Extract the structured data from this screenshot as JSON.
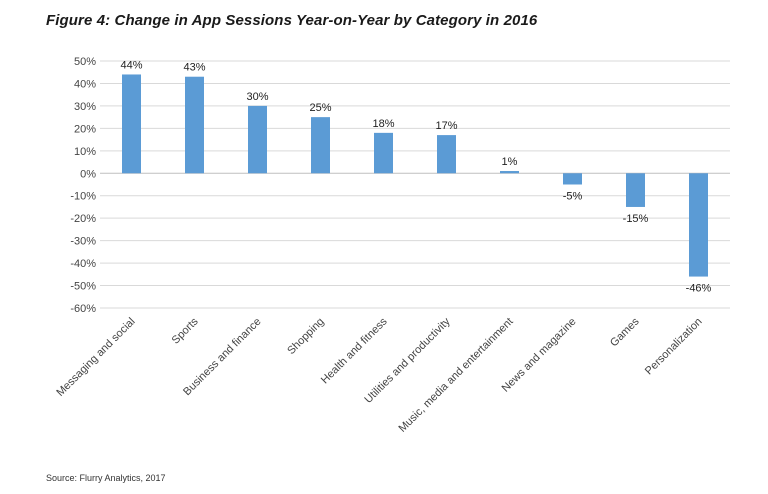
{
  "title": "Figure 4: Change in App Sessions Year-on-Year by Category in 2016",
  "source": "Source: Flurry Analytics, 2017",
  "chart_data": {
    "type": "bar",
    "title": "Figure 4: Change in App Sessions Year-on-Year by Category in 2016",
    "xlabel": "",
    "ylabel": "",
    "ylim": [
      -60,
      50
    ],
    "ytick_step": 10,
    "ytick_suffix": "%",
    "grid": true,
    "legend": "none",
    "bar_color": "#5b9bd5",
    "categories": [
      "Messaging and social",
      "Sports",
      "Business and finance",
      "Shopping",
      "Health and fitness",
      "Utilities and productivity",
      "Music, media and entertainment",
      "News and magazine",
      "Games",
      "Personalization"
    ],
    "values": [
      44,
      43,
      30,
      25,
      18,
      17,
      1,
      -5,
      -15,
      -46
    ],
    "data_labels": [
      "44%",
      "43%",
      "30%",
      "25%",
      "18%",
      "17%",
      "1%",
      "-5%",
      "-15%",
      "-46%"
    ]
  }
}
